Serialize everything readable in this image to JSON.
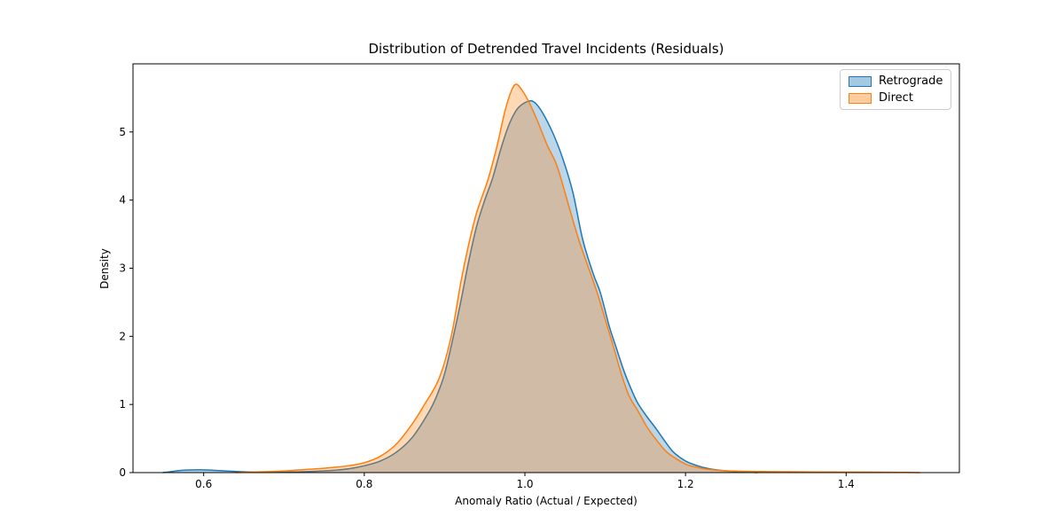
{
  "figure": {
    "background": "#ffffff",
    "text_color": "#000000",
    "spine_color": "#000000"
  },
  "chart_data": {
    "type": "area",
    "subtype": "kde-density",
    "title": "Distribution of Detrended Travel Incidents (Residuals)",
    "xlabel": "Anomaly Ratio (Actual / Expected)",
    "ylabel": "Density",
    "xlim": [
      0.512,
      1.541
    ],
    "ylim": [
      0,
      6.0
    ],
    "x_ticks": [
      0.6,
      0.8,
      1.0,
      1.2,
      1.4
    ],
    "x_tick_labels": [
      "0.6",
      "0.8",
      "1.0",
      "1.2",
      "1.4"
    ],
    "y_ticks": [
      0,
      1,
      2,
      3,
      4,
      5
    ],
    "y_tick_labels": [
      "0",
      "1",
      "2",
      "3",
      "4",
      "5"
    ],
    "grid": false,
    "legend_position": "upper right",
    "series": [
      {
        "name": "Retrograde",
        "line_color": "#1f77b4",
        "fill_color": "rgba(31,119,180,0.3)",
        "legend_fill": "rgba(31,119,180,0.4)",
        "points": [
          [
            0.549,
            0.0
          ],
          [
            0.558,
            0.012
          ],
          [
            0.568,
            0.028
          ],
          [
            0.58,
            0.038
          ],
          [
            0.595,
            0.041
          ],
          [
            0.61,
            0.036
          ],
          [
            0.625,
            0.026
          ],
          [
            0.64,
            0.016
          ],
          [
            0.66,
            0.008
          ],
          [
            0.68,
            0.006
          ],
          [
            0.7,
            0.007
          ],
          [
            0.72,
            0.012
          ],
          [
            0.74,
            0.02
          ],
          [
            0.76,
            0.032
          ],
          [
            0.78,
            0.055
          ],
          [
            0.8,
            0.1
          ],
          [
            0.82,
            0.17
          ],
          [
            0.84,
            0.3
          ],
          [
            0.86,
            0.52
          ],
          [
            0.88,
            0.88
          ],
          [
            0.89,
            1.12
          ],
          [
            0.9,
            1.45
          ],
          [
            0.91,
            1.95
          ],
          [
            0.92,
            2.5
          ],
          [
            0.93,
            3.1
          ],
          [
            0.94,
            3.62
          ],
          [
            0.95,
            4.0
          ],
          [
            0.96,
            4.33
          ],
          [
            0.97,
            4.75
          ],
          [
            0.98,
            5.1
          ],
          [
            0.99,
            5.33
          ],
          [
            1.0,
            5.43
          ],
          [
            1.01,
            5.45
          ],
          [
            1.02,
            5.32
          ],
          [
            1.035,
            4.98
          ],
          [
            1.048,
            4.58
          ],
          [
            1.06,
            4.1
          ],
          [
            1.072,
            3.42
          ],
          [
            1.085,
            2.92
          ],
          [
            1.094,
            2.64
          ],
          [
            1.105,
            2.15
          ],
          [
            1.113,
            1.86
          ],
          [
            1.124,
            1.47
          ],
          [
            1.134,
            1.18
          ],
          [
            1.141,
            1.01
          ],
          [
            1.152,
            0.82
          ],
          [
            1.163,
            0.65
          ],
          [
            1.175,
            0.45
          ],
          [
            1.185,
            0.3
          ],
          [
            1.2,
            0.17
          ],
          [
            1.215,
            0.1
          ],
          [
            1.23,
            0.055
          ],
          [
            1.25,
            0.025
          ],
          [
            1.27,
            0.01
          ],
          [
            1.29,
            0.0
          ]
        ]
      },
      {
        "name": "Direct",
        "line_color": "#ff7f0e",
        "fill_color": "rgba(255,127,14,0.3)",
        "legend_fill": "rgba(255,127,14,0.4)",
        "points": [
          [
            0.64,
            0.0
          ],
          [
            0.66,
            0.008
          ],
          [
            0.68,
            0.015
          ],
          [
            0.7,
            0.025
          ],
          [
            0.72,
            0.04
          ],
          [
            0.74,
            0.055
          ],
          [
            0.76,
            0.075
          ],
          [
            0.78,
            0.1
          ],
          [
            0.8,
            0.145
          ],
          [
            0.82,
            0.24
          ],
          [
            0.84,
            0.42
          ],
          [
            0.86,
            0.72
          ],
          [
            0.875,
            1.0
          ],
          [
            0.89,
            1.3
          ],
          [
            0.9,
            1.62
          ],
          [
            0.91,
            2.1
          ],
          [
            0.92,
            2.78
          ],
          [
            0.93,
            3.35
          ],
          [
            0.94,
            3.82
          ],
          [
            0.954,
            4.3
          ],
          [
            0.965,
            4.78
          ],
          [
            0.975,
            5.3
          ],
          [
            0.983,
            5.6
          ],
          [
            0.989,
            5.7
          ],
          [
            0.996,
            5.62
          ],
          [
            1.005,
            5.44
          ],
          [
            1.015,
            5.18
          ],
          [
            1.028,
            4.8
          ],
          [
            1.04,
            4.5
          ],
          [
            1.055,
            3.9
          ],
          [
            1.067,
            3.42
          ],
          [
            1.08,
            2.98
          ],
          [
            1.09,
            2.64
          ],
          [
            1.1,
            2.25
          ],
          [
            1.11,
            1.86
          ],
          [
            1.12,
            1.45
          ],
          [
            1.13,
            1.12
          ],
          [
            1.141,
            0.9
          ],
          [
            1.152,
            0.67
          ],
          [
            1.163,
            0.49
          ],
          [
            1.175,
            0.32
          ],
          [
            1.185,
            0.23
          ],
          [
            1.2,
            0.125
          ],
          [
            1.215,
            0.075
          ],
          [
            1.23,
            0.045
          ],
          [
            1.25,
            0.028
          ],
          [
            1.28,
            0.018
          ],
          [
            1.32,
            0.013
          ],
          [
            1.36,
            0.01
          ],
          [
            1.4,
            0.008
          ],
          [
            1.44,
            0.006
          ],
          [
            1.47,
            0.003
          ],
          [
            1.492,
            0.0
          ]
        ]
      }
    ]
  }
}
